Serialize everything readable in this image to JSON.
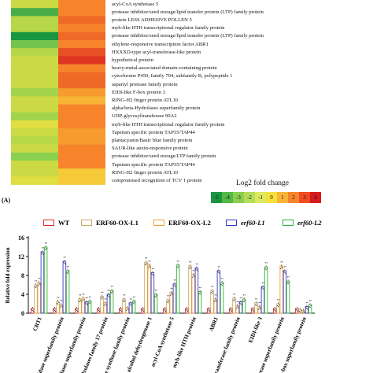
{
  "heatmap": {
    "panel_label": "(A)",
    "genes": [
      "acyl-CoA synthetase 5",
      "protease inhibitor/seed storage/lipid transfer protein (LTP) family protein",
      "protein LESS ADHESIVE POLLEN 5",
      "myb-like HTH transcriptional regulator family protein",
      "protease inhibitor/seed storage/lipid transfer protein (LTP) family protein",
      "ethylene-responsive transcription factor ABR1",
      "HXXXD-type acyl-transferase-like protein",
      "hypothetical protein",
      "heavy-metal-associated domain-containing protein",
      "cytochrome P450, family 704, subfamily B, polypeptide 1",
      "aspartyl protease family protein",
      "EIDI-like F-box protein 3",
      "RING-H2 finger protein ATL10",
      "alpha/beta-Hydrolases superfamily protein",
      "UDP-glycosyltransferase 90A2",
      "myb-like HTH transcriptional regulator family protein",
      "Tapetum specific protein TAP35/TAP44",
      "plantacyanin/Basic blue family protein",
      "SAUR-like auxin-responsive protein",
      "protease inhibitor/seed storage/LTP family protein",
      "Tapetum specific protein TAP35/TAP44",
      "RING-H2 finger protein ATL10",
      "compromised recognition of TCV 1 protein"
    ],
    "values": [
      [
        -1.0,
        2.0
      ],
      [
        -4.0,
        2.0
      ],
      [
        -1.5,
        2.5
      ],
      [
        -1.5,
        2.0
      ],
      [
        -5.0,
        2.5
      ],
      [
        -3.0,
        2.0
      ],
      [
        -1.5,
        3.0
      ],
      [
        -1.0,
        3.5
      ],
      [
        -1.0,
        2.0
      ],
      [
        -1.0,
        2.5
      ],
      [
        -1.0,
        2.5
      ],
      [
        -2.0,
        1.5
      ],
      [
        -1.0,
        1.0
      ],
      [
        -1.0,
        2.0
      ],
      [
        -2.0,
        2.0
      ],
      [
        -0.5,
        2.0
      ],
      [
        -1.0,
        1.5
      ],
      [
        -1.5,
        1.5
      ],
      [
        -1.0,
        2.0
      ],
      [
        -2.5,
        2.0
      ],
      [
        -1.0,
        2.0
      ],
      [
        -1.0,
        0.5
      ],
      [
        -0.5,
        0.5
      ]
    ],
    "scale_title": "Log2 fold change",
    "scale_ticks": [
      "-5",
      "-4",
      "-3",
      "-2",
      "-1",
      "0",
      "1",
      "2",
      "3",
      "4"
    ],
    "scale_colors": [
      "#1a9641",
      "#52b848",
      "#8acf4e",
      "#b5dd5a",
      "#dcea61",
      "#f3e03a",
      "#f9b436",
      "#f7842b",
      "#ef4c22",
      "#d7191c"
    ]
  },
  "chart_data": {
    "type": "bar",
    "ylabel": "Relative fold expression",
    "ylim": [
      0,
      16
    ],
    "yticks": [
      0,
      4,
      8,
      12,
      16
    ],
    "series": [
      {
        "name": "WT",
        "color": "#e0302a"
      },
      {
        "name": "ERF60-OX-L1",
        "color": "#c9a96a"
      },
      {
        "name": "ERF60-OX-L2",
        "color": "#f0a035"
      },
      {
        "name": "erf60-L1",
        "color": "#3838c8"
      },
      {
        "name": "erf60-L2",
        "color": "#38b038"
      }
    ],
    "categories": [
      "CRT1",
      "…idase superfamily protein",
      "…olases superfamily protein",
      "…drolases family 17 protein",
      "…ne synthase family protein",
      "alcohol dehydrogenase 1",
      "acyl-CoA synthetase 5",
      "myb-like HTH protein",
      "ABR1",
      "…transferase family protein",
      "EIDI-like 3",
      "…grease superfamily protein",
      "…-box superfamily protein"
    ],
    "values": [
      [
        1,
        6,
        6.5,
        13,
        14
      ],
      [
        1,
        2.5,
        1.8,
        11,
        9
      ],
      [
        1,
        3,
        3.2,
        2.4,
        2.6
      ],
      [
        1,
        3.6,
        2.2,
        4,
        4.8
      ],
      [
        1,
        3,
        1.2,
        2.2,
        2.6
      ],
      [
        1,
        10.8,
        10.2,
        8.6,
        4
      ],
      [
        1,
        2.8,
        4.4,
        6.2,
        10.2
      ],
      [
        1,
        10,
        8.2,
        9.6,
        4.6
      ],
      [
        1,
        4.8,
        3,
        9,
        6.5
      ],
      [
        1,
        3.2,
        1.6,
        2.4,
        3
      ],
      [
        1,
        2.2,
        1.4,
        5.6,
        9.8
      ],
      [
        1,
        2,
        10,
        9,
        6.8
      ],
      [
        1,
        0.8,
        0.6,
        1.4,
        1.8
      ]
    ],
    "significance": "**"
  }
}
